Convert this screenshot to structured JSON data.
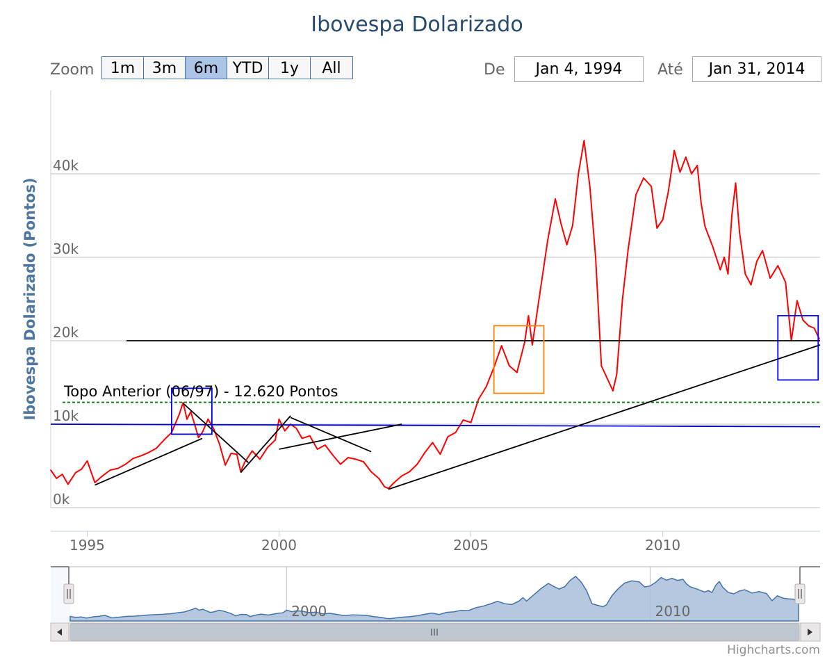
{
  "title": "Ibovespa Dolarizado",
  "range_selector": {
    "zoom_label": "Zoom",
    "buttons": [
      "1m",
      "3m",
      "6m",
      "YTD",
      "1y",
      "All"
    ],
    "active": "6m",
    "from_label": "De",
    "from_value": "Jan 4, 1994",
    "to_label": "Até",
    "to_value": "Jan 31, 2014"
  },
  "credits": "Highcharts.com",
  "colors": {
    "series": "#ff0000",
    "navigator_fill": "#a8bedb",
    "navigator_line": "#4572a7",
    "title": "#274b6d"
  },
  "chart_data": {
    "type": "line",
    "title": "Ibovespa Dolarizado",
    "ylabel": "Ibovespa Dolarizado (Pontos)",
    "xlabel": "",
    "xlim": [
      1994.05,
      2014.1
    ],
    "ylim": [
      0,
      50000
    ],
    "y_ticks": [
      0,
      10000,
      20000,
      30000,
      40000
    ],
    "y_tick_labels": [
      "0k",
      "10k",
      "20k",
      "30k",
      "40k"
    ],
    "x_ticks": [
      1995,
      2000,
      2005,
      2010
    ],
    "x_tick_labels": [
      "1995",
      "2000",
      "2005",
      "2010"
    ],
    "navigator_tick_labels": [
      {
        "x": 2000,
        "label": "2000"
      },
      {
        "x": 2010,
        "label": "2010"
      }
    ],
    "grid": true,
    "series": [
      {
        "color": "#ff0000",
        "x": [
          1994.05,
          1994.2,
          1994.35,
          1994.5,
          1994.7,
          1994.85,
          1995.0,
          1995.2,
          1995.4,
          1995.6,
          1995.8,
          1996.0,
          1996.2,
          1996.4,
          1996.6,
          1996.8,
          1997.0,
          1997.2,
          1997.4,
          1997.5,
          1997.6,
          1997.7,
          1997.8,
          1997.9,
          1998.0,
          1998.15,
          1998.3,
          1998.45,
          1998.6,
          1998.75,
          1998.9,
          1999.0,
          1999.1,
          1999.3,
          1999.5,
          1999.7,
          1999.9,
          2000.0,
          2000.15,
          2000.3,
          2000.45,
          2000.6,
          2000.8,
          2001.0,
          2001.2,
          2001.4,
          2001.6,
          2001.8,
          2002.0,
          2002.2,
          2002.4,
          2002.6,
          2002.75,
          2002.85,
          2003.0,
          2003.2,
          2003.4,
          2003.6,
          2003.8,
          2004.0,
          2004.2,
          2004.4,
          2004.6,
          2004.8,
          2005.0,
          2005.2,
          2005.4,
          2005.6,
          2005.8,
          2006.0,
          2006.2,
          2006.4,
          2006.5,
          2006.6,
          2006.8,
          2007.0,
          2007.2,
          2007.35,
          2007.5,
          2007.65,
          2007.8,
          2007.95,
          2008.1,
          2008.25,
          2008.4,
          2008.55,
          2008.7,
          2008.8,
          2008.9,
          2008.95,
          2009.1,
          2009.3,
          2009.5,
          2009.7,
          2009.85,
          2010.0,
          2010.15,
          2010.3,
          2010.45,
          2010.6,
          2010.75,
          2010.9,
          2011.0,
          2011.1,
          2011.3,
          2011.5,
          2011.6,
          2011.7,
          2011.8,
          2011.9,
          2012.0,
          2012.15,
          2012.3,
          2012.45,
          2012.6,
          2012.8,
          2013.0,
          2013.2,
          2013.35,
          2013.5,
          2013.65,
          2013.8,
          2013.95,
          2014.08
        ],
        "y": [
          4500,
          3500,
          4000,
          2800,
          4200,
          4600,
          5600,
          3000,
          3800,
          4500,
          4700,
          5200,
          5900,
          6200,
          6600,
          7100,
          8100,
          9000,
          11200,
          12600,
          10600,
          11500,
          10000,
          8400,
          9000,
          10600,
          9400,
          7600,
          5100,
          6500,
          6400,
          4300,
          5400,
          6800,
          5800,
          7200,
          8100,
          10600,
          9200,
          10000,
          9500,
          8300,
          8600,
          7000,
          7500,
          6300,
          5200,
          6000,
          5800,
          5500,
          4300,
          3500,
          2500,
          2300,
          3000,
          3800,
          4300,
          5200,
          6600,
          7800,
          6400,
          8500,
          9000,
          10500,
          10200,
          13000,
          14500,
          16800,
          19400,
          17000,
          16200,
          19800,
          23000,
          19500,
          25800,
          32000,
          37000,
          34000,
          31500,
          33800,
          40000,
          44000,
          38500,
          30000,
          17000,
          15500,
          14000,
          16000,
          22000,
          25000,
          31000,
          37500,
          39500,
          38500,
          33500,
          34500,
          38000,
          42800,
          40200,
          42000,
          40000,
          41000,
          36500,
          33700,
          31300,
          28500,
          30000,
          28000,
          35000,
          38900,
          33000,
          28000,
          26700,
          29500,
          30800,
          27500,
          29000,
          27000,
          20000,
          24800,
          22500,
          21800,
          21500,
          20200
        ]
      }
    ],
    "annotations": [
      {
        "type": "text",
        "text": "Topo Anterior (06/97) - 12.620 Pontos"
      },
      {
        "type": "horizontal_line",
        "y": 12620,
        "color": "#008000",
        "style": "dashed"
      },
      {
        "type": "horizontal_line",
        "y": 20000,
        "color": "#000000"
      },
      {
        "type": "line",
        "color": "#0000cc",
        "from": [
          1994.05,
          10000
        ],
        "to": [
          2014.1,
          9700
        ]
      },
      {
        "type": "line",
        "color": "#000000",
        "from": [
          1995.2,
          2700
        ],
        "to": [
          1998.0,
          8300
        ]
      },
      {
        "type": "line",
        "color": "#000000",
        "from": [
          1997.5,
          12500
        ],
        "to": [
          1999.2,
          5400
        ]
      },
      {
        "type": "line",
        "color": "#000000",
        "from": [
          1999.0,
          4200
        ],
        "to": [
          2000.3,
          11000
        ]
      },
      {
        "type": "line",
        "color": "#000000",
        "from": [
          2000.3,
          10800
        ],
        "to": [
          2002.4,
          6700
        ]
      },
      {
        "type": "line",
        "color": "#000000",
        "from": [
          2000.0,
          7000
        ],
        "to": [
          2003.2,
          10000
        ]
      },
      {
        "type": "line",
        "color": "#000000",
        "from": [
          2002.85,
          2200
        ],
        "to": [
          2014.1,
          19500
        ]
      },
      {
        "type": "box",
        "color": "#0000ff",
        "x": [
          1997.2,
          1998.25
        ],
        "y": [
          8800,
          14300
        ]
      },
      {
        "type": "box",
        "color": "#ff8000",
        "x": [
          2005.6,
          2006.9
        ],
        "y": [
          13700,
          21800
        ]
      },
      {
        "type": "box",
        "color": "#0000ff",
        "x": [
          2013.0,
          2014.05
        ],
        "y": [
          15300,
          23000
        ]
      }
    ]
  }
}
